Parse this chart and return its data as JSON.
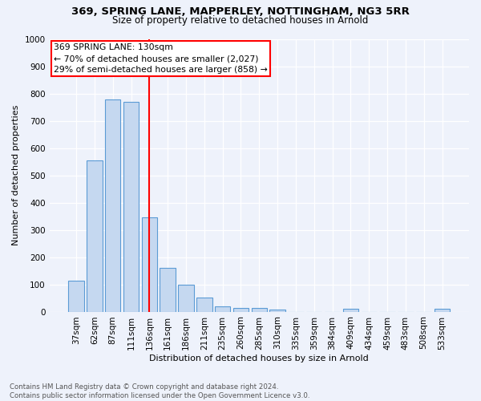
{
  "title1": "369, SPRING LANE, MAPPERLEY, NOTTINGHAM, NG3 5RR",
  "title2": "Size of property relative to detached houses in Arnold",
  "xlabel": "Distribution of detached houses by size in Arnold",
  "ylabel": "Number of detached properties",
  "categories": [
    "37sqm",
    "62sqm",
    "87sqm",
    "111sqm",
    "136sqm",
    "161sqm",
    "186sqm",
    "211sqm",
    "235sqm",
    "260sqm",
    "285sqm",
    "310sqm",
    "335sqm",
    "359sqm",
    "384sqm",
    "409sqm",
    "434sqm",
    "459sqm",
    "483sqm",
    "508sqm",
    "533sqm"
  ],
  "values": [
    113,
    555,
    778,
    770,
    345,
    160,
    98,
    53,
    20,
    13,
    12,
    8,
    0,
    0,
    0,
    10,
    0,
    0,
    0,
    0,
    10
  ],
  "bar_color": "#c5d8f0",
  "bar_edge_color": "#5b9bd5",
  "vline_x": 4,
  "annotation_text1": "369 SPRING LANE: 130sqm",
  "annotation_text2": "← 70% of detached houses are smaller (2,027)",
  "annotation_text3": "29% of semi-detached houses are larger (858) →",
  "vline_color": "red",
  "ylim": [
    0,
    1000
  ],
  "yticks": [
    0,
    100,
    200,
    300,
    400,
    500,
    600,
    700,
    800,
    900,
    1000
  ],
  "footer1": "Contains HM Land Registry data © Crown copyright and database right 2024.",
  "footer2": "Contains public sector information licensed under the Open Government Licence v3.0.",
  "bg_color": "#eef2fb",
  "grid_color": "white",
  "title1_fontsize": 9.5,
  "title2_fontsize": 8.5,
  "xlabel_fontsize": 8.0,
  "ylabel_fontsize": 8.0,
  "tick_fontsize": 7.5,
  "annot_fontsize": 7.8,
  "footer_fontsize": 6.2
}
